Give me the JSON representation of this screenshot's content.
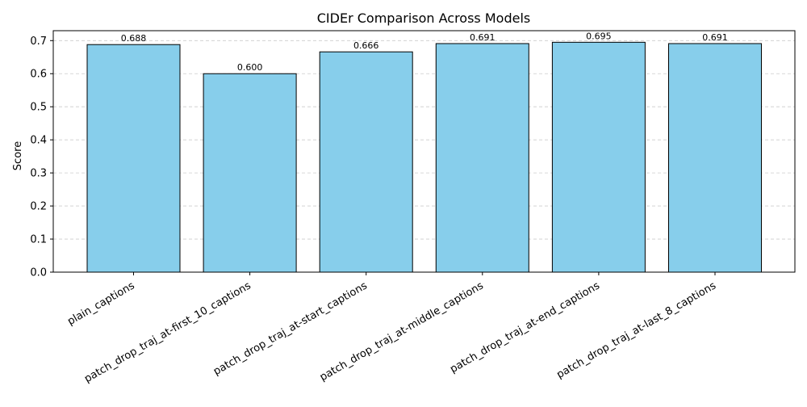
{
  "chart_data": {
    "type": "bar",
    "title": "CIDEr Comparison Across Models",
    "xlabel": "",
    "ylabel": "Score",
    "ylim": [
      0,
      0.73
    ],
    "yticks": [
      0.0,
      0.1,
      0.2,
      0.3,
      0.4,
      0.5,
      0.6,
      0.7
    ],
    "ytick_labels": [
      "0.0",
      "0.1",
      "0.2",
      "0.3",
      "0.4",
      "0.5",
      "0.6",
      "0.7"
    ],
    "grid": "y-dashed",
    "legend": "none",
    "categories": [
      "plain_captions",
      "patch_drop_traj_at-first_10_captions",
      "patch_drop_traj_at-start_captions",
      "patch_drop_traj_at-middle_captions",
      "patch_drop_traj_at-end_captions",
      "patch_drop_traj_at-last_8_captions"
    ],
    "values": [
      0.688,
      0.6,
      0.666,
      0.691,
      0.695,
      0.691
    ],
    "value_labels": [
      "0.688",
      "0.600",
      "0.666",
      "0.691",
      "0.695",
      "0.691"
    ],
    "colors": {
      "bar_fill": "#87ceeb",
      "bar_edge": "#000000",
      "grid": "#cccccc",
      "axis": "#000000"
    }
  }
}
